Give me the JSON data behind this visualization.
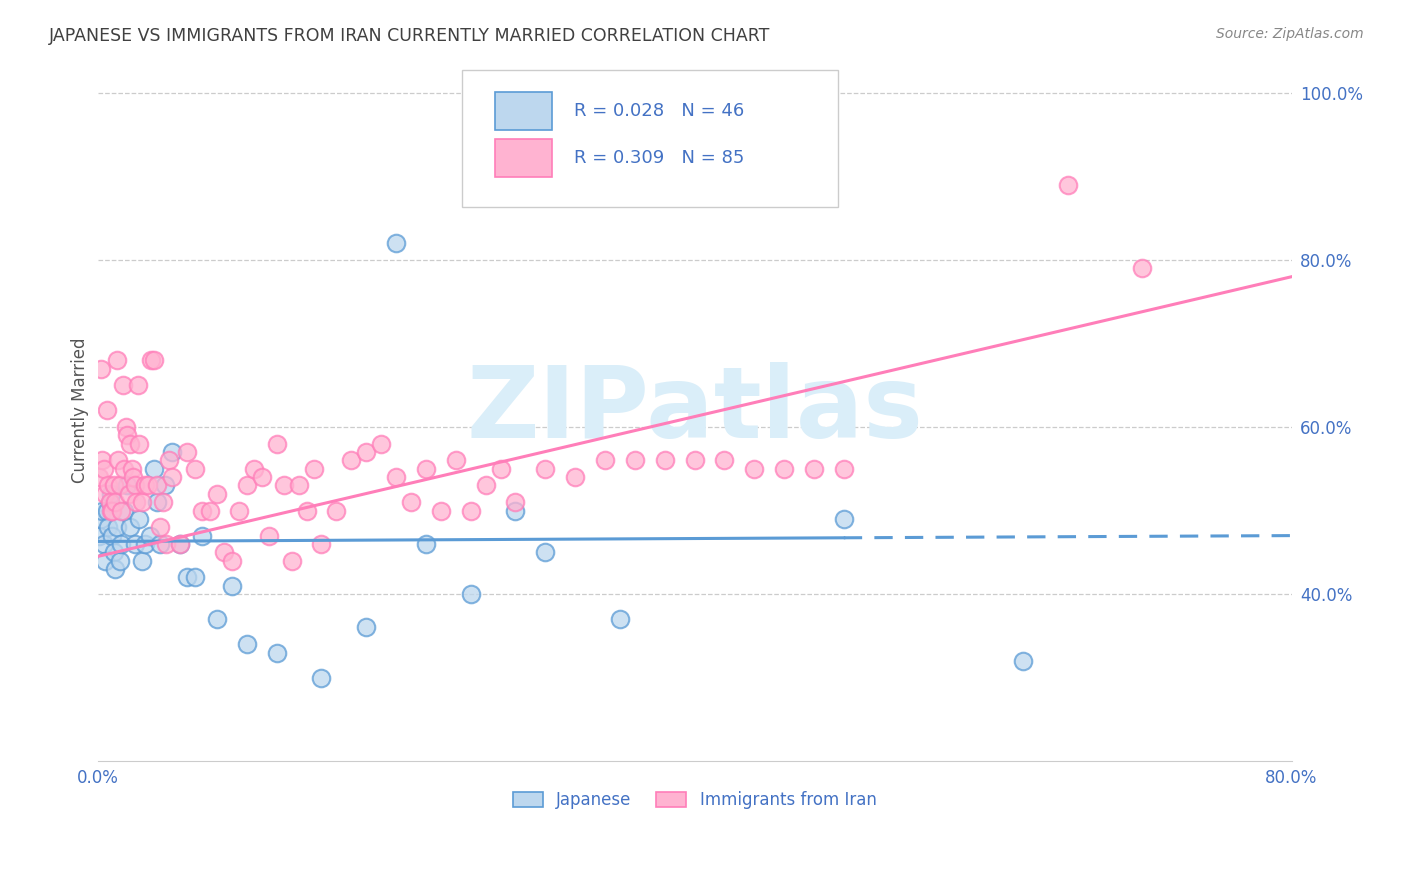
{
  "title": "JAPANESE VS IMMIGRANTS FROM IRAN CURRENTLY MARRIED CORRELATION CHART",
  "source": "Source: ZipAtlas.com",
  "ylabel": "Currently Married",
  "yticks": [
    0.4,
    0.6,
    0.8,
    1.0
  ],
  "ytick_labels": [
    "40.0%",
    "60.0%",
    "80.0%",
    "100.0%"
  ],
  "legend_label1": "Japanese",
  "legend_label2": "Immigrants from Iran",
  "color_blue": "#5B9BD5",
  "color_pink": "#FF7EB9",
  "color_blue_light": "#BDD7EE",
  "color_pink_light": "#FFB3D1",
  "color_text": "#4472C4",
  "color_title": "#404040",
  "color_source": "#888888",
  "watermark_text": "ZIPatlas",
  "watermark_color": "#DAEEF9",
  "background_color": "#ffffff",
  "grid_color": "#cccccc",
  "xlim": [
    0.0,
    0.8
  ],
  "ylim": [
    0.2,
    1.04
  ],
  "blue_line_solid_end": 0.5,
  "blue_line_y_at_0": 0.463,
  "blue_line_y_at_80": 0.47,
  "pink_line_y_at_0": 0.445,
  "pink_line_y_at_80": 0.78,
  "japanese_x": [
    0.001,
    0.002,
    0.003,
    0.004,
    0.005,
    0.006,
    0.007,
    0.008,
    0.009,
    0.01,
    0.011,
    0.012,
    0.013,
    0.015,
    0.016,
    0.018,
    0.02,
    0.022,
    0.025,
    0.028,
    0.03,
    0.032,
    0.035,
    0.038,
    0.04,
    0.042,
    0.045,
    0.05,
    0.055,
    0.06,
    0.065,
    0.07,
    0.08,
    0.09,
    0.1,
    0.12,
    0.15,
    0.18,
    0.2,
    0.22,
    0.25,
    0.28,
    0.3,
    0.35,
    0.5,
    0.62
  ],
  "japanese_y": [
    0.47,
    0.49,
    0.5,
    0.46,
    0.44,
    0.5,
    0.48,
    0.51,
    0.52,
    0.47,
    0.45,
    0.43,
    0.48,
    0.44,
    0.46,
    0.5,
    0.53,
    0.48,
    0.46,
    0.49,
    0.44,
    0.46,
    0.47,
    0.55,
    0.51,
    0.46,
    0.53,
    0.57,
    0.46,
    0.42,
    0.42,
    0.47,
    0.37,
    0.41,
    0.34,
    0.33,
    0.3,
    0.36,
    0.82,
    0.46,
    0.4,
    0.5,
    0.45,
    0.37,
    0.49,
    0.32
  ],
  "iran_x": [
    0.001,
    0.002,
    0.003,
    0.004,
    0.005,
    0.006,
    0.007,
    0.008,
    0.009,
    0.01,
    0.011,
    0.012,
    0.013,
    0.014,
    0.015,
    0.016,
    0.017,
    0.018,
    0.019,
    0.02,
    0.021,
    0.022,
    0.023,
    0.024,
    0.025,
    0.026,
    0.027,
    0.028,
    0.03,
    0.032,
    0.034,
    0.036,
    0.038,
    0.04,
    0.042,
    0.044,
    0.046,
    0.048,
    0.05,
    0.055,
    0.06,
    0.065,
    0.07,
    0.075,
    0.08,
    0.085,
    0.09,
    0.095,
    0.1,
    0.105,
    0.11,
    0.115,
    0.12,
    0.125,
    0.13,
    0.135,
    0.14,
    0.145,
    0.15,
    0.16,
    0.17,
    0.18,
    0.19,
    0.2,
    0.21,
    0.22,
    0.23,
    0.24,
    0.25,
    0.26,
    0.27,
    0.28,
    0.3,
    0.32,
    0.34,
    0.36,
    0.38,
    0.4,
    0.42,
    0.44,
    0.46,
    0.48,
    0.5,
    0.65,
    0.7
  ],
  "iran_y": [
    0.54,
    0.67,
    0.56,
    0.55,
    0.52,
    0.62,
    0.53,
    0.51,
    0.5,
    0.5,
    0.53,
    0.51,
    0.68,
    0.56,
    0.53,
    0.5,
    0.65,
    0.55,
    0.6,
    0.59,
    0.52,
    0.58,
    0.55,
    0.54,
    0.53,
    0.51,
    0.65,
    0.58,
    0.51,
    0.53,
    0.53,
    0.68,
    0.68,
    0.53,
    0.48,
    0.51,
    0.46,
    0.56,
    0.54,
    0.46,
    0.57,
    0.55,
    0.5,
    0.5,
    0.52,
    0.45,
    0.44,
    0.5,
    0.53,
    0.55,
    0.54,
    0.47,
    0.58,
    0.53,
    0.44,
    0.53,
    0.5,
    0.55,
    0.46,
    0.5,
    0.56,
    0.57,
    0.58,
    0.54,
    0.51,
    0.55,
    0.5,
    0.56,
    0.5,
    0.53,
    0.55,
    0.51,
    0.55,
    0.54,
    0.56,
    0.56,
    0.56,
    0.56,
    0.56,
    0.55,
    0.55,
    0.55,
    0.55,
    0.89,
    0.79
  ]
}
